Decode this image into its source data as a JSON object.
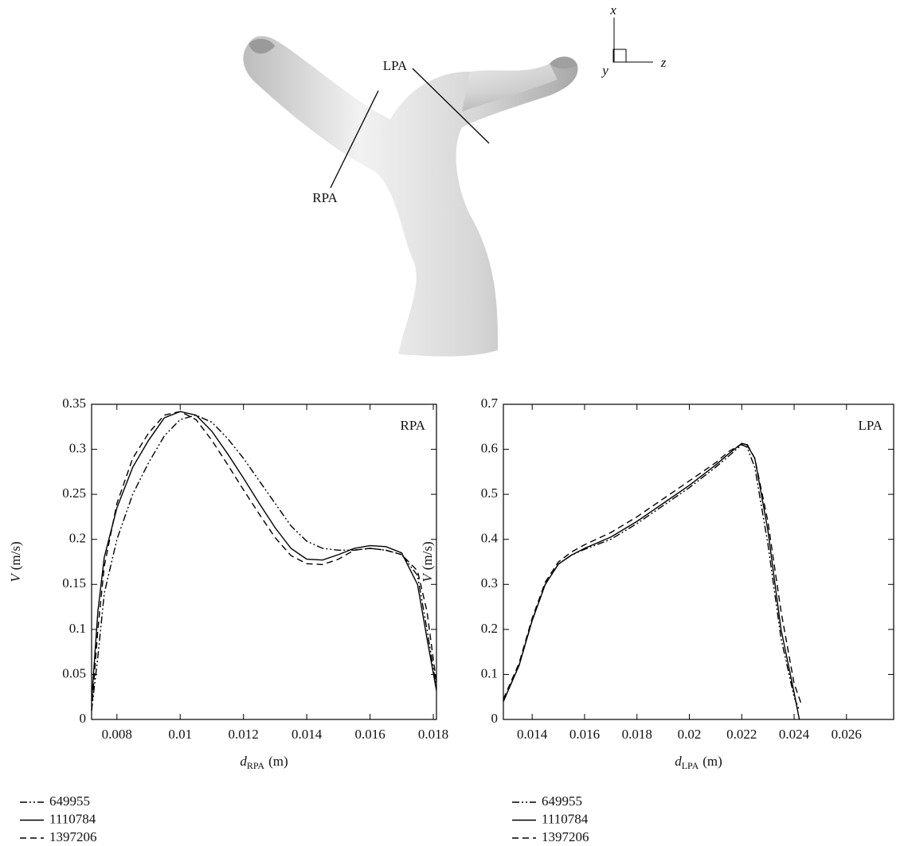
{
  "illustration": {
    "labels": {
      "lpa": "LPA",
      "rpa": "RPA",
      "x": "x",
      "y": "y",
      "z": "z"
    }
  },
  "chart_data": [
    {
      "type": "line",
      "annotation": "RPA",
      "xlabel": {
        "var": "d",
        "sub": "RPA",
        "unit": "(m)"
      },
      "ylabel": {
        "var": "V",
        "unit": "(m/s)"
      },
      "xlim": [
        0.0072,
        0.0181
      ],
      "ylim": [
        0,
        0.35
      ],
      "xticks": [
        0.008,
        0.01,
        0.012,
        0.014,
        0.016,
        0.018
      ],
      "yticks": [
        0,
        0.05,
        0.1,
        0.15,
        0.2,
        0.25,
        0.3,
        0.35
      ],
      "series": [
        {
          "name": "649955",
          "color": "#000000",
          "linestyle": "dashdot",
          "x": [
            0.0072,
            0.0074,
            0.0076,
            0.008,
            0.0085,
            0.009,
            0.0095,
            0.01,
            0.0105,
            0.011,
            0.0115,
            0.012,
            0.0125,
            0.013,
            0.0135,
            0.014,
            0.0145,
            0.015,
            0.0155,
            0.016,
            0.0165,
            0.017,
            0.0175,
            0.0178,
            0.0181
          ],
          "values": [
            0.01,
            0.07,
            0.14,
            0.2,
            0.25,
            0.285,
            0.315,
            0.333,
            0.338,
            0.33,
            0.312,
            0.29,
            0.265,
            0.24,
            0.215,
            0.198,
            0.19,
            0.188,
            0.188,
            0.19,
            0.188,
            0.183,
            0.16,
            0.1,
            0.035
          ]
        },
        {
          "name": "1110784",
          "color": "#000000",
          "linestyle": "solid",
          "x": [
            0.0072,
            0.0074,
            0.0076,
            0.008,
            0.0085,
            0.009,
            0.0095,
            0.01,
            0.0105,
            0.011,
            0.0115,
            0.012,
            0.0125,
            0.013,
            0.0135,
            0.014,
            0.0145,
            0.015,
            0.0155,
            0.016,
            0.0165,
            0.017,
            0.0175,
            0.0178,
            0.0181
          ],
          "values": [
            0.02,
            0.12,
            0.18,
            0.235,
            0.28,
            0.31,
            0.335,
            0.342,
            0.338,
            0.32,
            0.295,
            0.268,
            0.24,
            0.213,
            0.19,
            0.178,
            0.177,
            0.183,
            0.19,
            0.193,
            0.192,
            0.185,
            0.15,
            0.09,
            0.032
          ]
        },
        {
          "name": "1397206",
          "color": "#000000",
          "linestyle": "dashed",
          "x": [
            0.0072,
            0.0074,
            0.0076,
            0.008,
            0.0085,
            0.009,
            0.0095,
            0.01,
            0.0105,
            0.011,
            0.0115,
            0.012,
            0.0125,
            0.013,
            0.0135,
            0.014,
            0.0145,
            0.015,
            0.0155,
            0.016,
            0.0165,
            0.017,
            0.0175,
            0.0178,
            0.0181
          ],
          "values": [
            0.01,
            0.1,
            0.17,
            0.24,
            0.29,
            0.318,
            0.338,
            0.342,
            0.333,
            0.31,
            0.283,
            0.255,
            0.228,
            0.202,
            0.182,
            0.173,
            0.172,
            0.178,
            0.188,
            0.19,
            0.188,
            0.183,
            0.165,
            0.12,
            0.04
          ]
        }
      ]
    },
    {
      "type": "line",
      "annotation": "LPA",
      "xlabel": {
        "var": "d",
        "sub": "LPA",
        "unit": "(m)"
      },
      "ylabel": {
        "var": "V",
        "unit": "(m/s)"
      },
      "xlim": [
        0.0129,
        0.0278
      ],
      "ylim": [
        0,
        0.7
      ],
      "xticks": [
        0.014,
        0.016,
        0.018,
        0.02,
        0.022,
        0.024,
        0.026
      ],
      "yticks": [
        0,
        0.1,
        0.2,
        0.3,
        0.4,
        0.5,
        0.6,
        0.7
      ],
      "series": [
        {
          "name": "649955",
          "color": "#000000",
          "linestyle": "dashdot",
          "x": [
            0.0129,
            0.0135,
            0.014,
            0.0145,
            0.015,
            0.0155,
            0.016,
            0.017,
            0.018,
            0.019,
            0.02,
            0.021,
            0.0215,
            0.022,
            0.0222,
            0.0225,
            0.023,
            0.0235,
            0.024,
            0.0242
          ],
          "values": [
            0.04,
            0.12,
            0.22,
            0.3,
            0.345,
            0.365,
            0.378,
            0.4,
            0.435,
            0.475,
            0.515,
            0.56,
            0.585,
            0.61,
            0.605,
            0.56,
            0.39,
            0.18,
            0.05,
            0.02
          ]
        },
        {
          "name": "1110784",
          "color": "#000000",
          "linestyle": "solid",
          "x": [
            0.0129,
            0.0135,
            0.014,
            0.0145,
            0.015,
            0.0155,
            0.016,
            0.017,
            0.018,
            0.019,
            0.02,
            0.021,
            0.0215,
            0.022,
            0.0222,
            0.0225,
            0.023,
            0.0235,
            0.024,
            0.0242
          ],
          "values": [
            0.04,
            0.12,
            0.22,
            0.3,
            0.345,
            0.365,
            0.38,
            0.405,
            0.44,
            0.48,
            0.52,
            0.565,
            0.59,
            0.613,
            0.61,
            0.58,
            0.42,
            0.2,
            0.06,
            0
          ]
        },
        {
          "name": "1397206",
          "color": "#000000",
          "linestyle": "dashed",
          "x": [
            0.0129,
            0.0135,
            0.014,
            0.0145,
            0.015,
            0.0155,
            0.016,
            0.017,
            0.018,
            0.019,
            0.02,
            0.021,
            0.0215,
            0.022,
            0.0222,
            0.0225,
            0.023,
            0.0235,
            0.024,
            0.0243
          ],
          "values": [
            0.045,
            0.125,
            0.225,
            0.305,
            0.35,
            0.372,
            0.388,
            0.415,
            0.45,
            0.49,
            0.53,
            0.57,
            0.595,
            0.612,
            0.612,
            0.58,
            0.44,
            0.24,
            0.08,
            0.03
          ]
        }
      ]
    }
  ]
}
